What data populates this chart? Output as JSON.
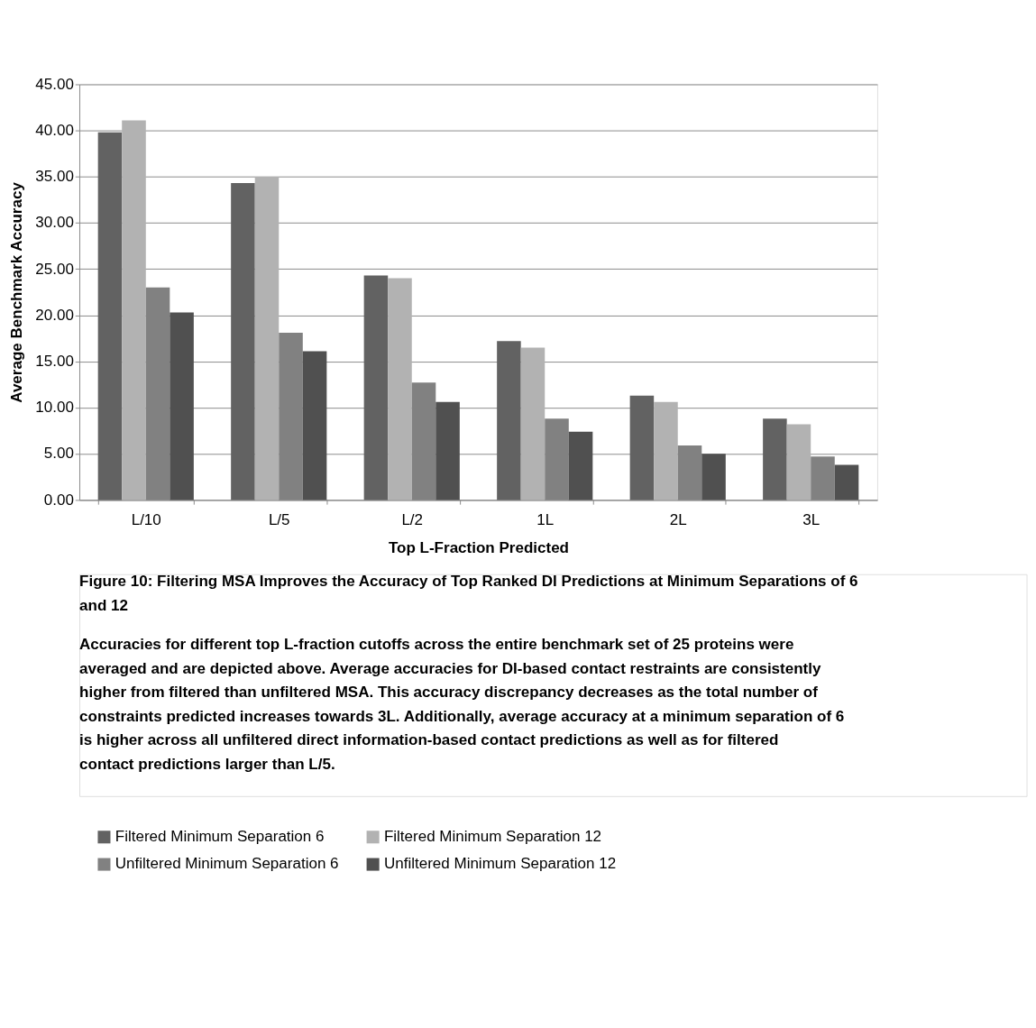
{
  "chart_data": {
    "type": "bar",
    "categories": [
      "L/10",
      "L/5",
      "L/2",
      "1L",
      "2L",
      "3L"
    ],
    "xlabel": "Top L-Fraction Predicted",
    "ylabel": "Average Benchmark Accuracy",
    "ylim": [
      0,
      45
    ],
    "yticks": [
      {
        "value": 0,
        "label": "0.00"
      },
      {
        "value": 5,
        "label": "5.00"
      },
      {
        "value": 10,
        "label": "10.00"
      },
      {
        "value": 15,
        "label": "15.00"
      },
      {
        "value": 20,
        "label": "20.00"
      },
      {
        "value": 25,
        "label": "25.00"
      },
      {
        "value": 30,
        "label": "30.00"
      },
      {
        "value": 35,
        "label": "35.00"
      },
      {
        "value": 40,
        "label": "40.00"
      },
      {
        "value": 45,
        "label": "45.00"
      }
    ],
    "grid": "y",
    "legend": "bottom",
    "series": [
      {
        "name": "Filtered Minimum Separation 6",
        "color": "#626262",
        "values": [
          39.8,
          34.3,
          24.3,
          17.2,
          11.3,
          8.8
        ]
      },
      {
        "name": "Filtered Minimum Separation 12",
        "color": "#b2b2b2",
        "values": [
          41.1,
          35.0,
          24.0,
          16.5,
          10.6,
          8.2
        ]
      },
      {
        "name": "Unfiltered Minimum Separation 6",
        "color": "#818181",
        "values": [
          23.0,
          18.1,
          12.7,
          8.8,
          5.9,
          4.7
        ]
      },
      {
        "name": "Unfiltered Minimum Separation 12",
        "color": "#505050",
        "values": [
          20.3,
          16.1,
          10.6,
          7.4,
          5.0,
          3.8
        ]
      }
    ],
    "annotations": [
      "Figure 10: Filtering MSA Improves the Accuracy of Top Ranked DI Predictions at Minimum Separations of 6 and 12",
      "Accuracies for different top L-fraction cutoffs across the entire benchmark set of 25 proteins were averaged and are depicted above. Average accuracies for DI-based contact restraints are consistently higher from filtered than unfiltered MSA. This accuracy discrepancy decreases as the total number of constraints predicted increases towards 3L. Additionally, average accuracy at a minimum separation of 6 is higher across all unfiltered direct information-based contact predictions as well as for filtered contact predictions larger than L/5."
    ]
  }
}
